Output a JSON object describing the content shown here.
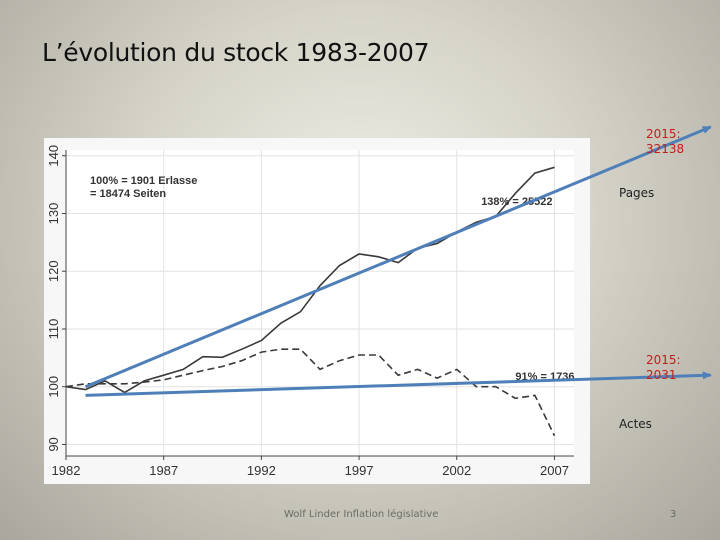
{
  "slide": {
    "title": "L’évolution du stock 1983-2007",
    "footer_text": "Wolf Linder Inflation législative",
    "page_number": "3"
  },
  "annotations": {
    "pages_forecast": "2015: 32138",
    "pages_label": "Pages",
    "acts_forecast": "2015: 2031",
    "acts_label": "Actes"
  },
  "chart_data": {
    "type": "line",
    "title": "",
    "xlabel": "",
    "ylabel": "",
    "xlim": [
      1982,
      2008
    ],
    "ylim": [
      88,
      141
    ],
    "x_ticks": [
      1982,
      1987,
      1992,
      1997,
      2002,
      2007
    ],
    "y_ticks": [
      90,
      100,
      110,
      120,
      130,
      140
    ],
    "legend_box": [
      "100% = 1901 Erlasse",
      "= 18474 Seiten"
    ],
    "series": [
      {
        "name": "Seiten",
        "style": "solid",
        "end_label": "138% = 25522",
        "x": [
          1982,
          1983,
          1984,
          1985,
          1986,
          1987,
          1988,
          1989,
          1990,
          1991,
          1992,
          1993,
          1994,
          1995,
          1996,
          1997,
          1998,
          1999,
          2000,
          2001,
          2002,
          2003,
          2004,
          2005,
          2006,
          2007
        ],
        "values": [
          100,
          99.5,
          101,
          99,
          101,
          102,
          103,
          105.2,
          105.1,
          106.5,
          108,
          111,
          113,
          117.5,
          121,
          123,
          122.5,
          121.5,
          124,
          124.8,
          126.8,
          128.5,
          129.5,
          133.5,
          137,
          138
        ]
      },
      {
        "name": "Erlasse",
        "style": "dashed",
        "end_label": "91% = 1736",
        "x": [
          1982,
          1983,
          1984,
          1985,
          1986,
          1987,
          1988,
          1989,
          1990,
          1991,
          1992,
          1993,
          1994,
          1995,
          1996,
          1997,
          1998,
          1999,
          2000,
          2001,
          2002,
          2003,
          2004,
          2005,
          2006,
          2007
        ],
        "values": [
          100,
          100.5,
          100.5,
          100.5,
          100.8,
          101.2,
          102,
          102.8,
          103.5,
          104.5,
          106,
          106.5,
          106.5,
          103,
          104.5,
          105.5,
          105.5,
          102,
          103,
          101.5,
          103,
          100,
          100,
          98,
          98.5,
          91.5
        ]
      }
    ],
    "overlay_arrows": [
      {
        "name": "pages-trend-arrow",
        "from": [
          1983,
          100
        ],
        "to": [
          2015,
          145
        ],
        "color": "#4f7fb8"
      },
      {
        "name": "acts-trend-arrow",
        "from": [
          1983,
          98.5
        ],
        "to": [
          2015,
          102
        ],
        "color": "#4f7fb8"
      }
    ]
  }
}
